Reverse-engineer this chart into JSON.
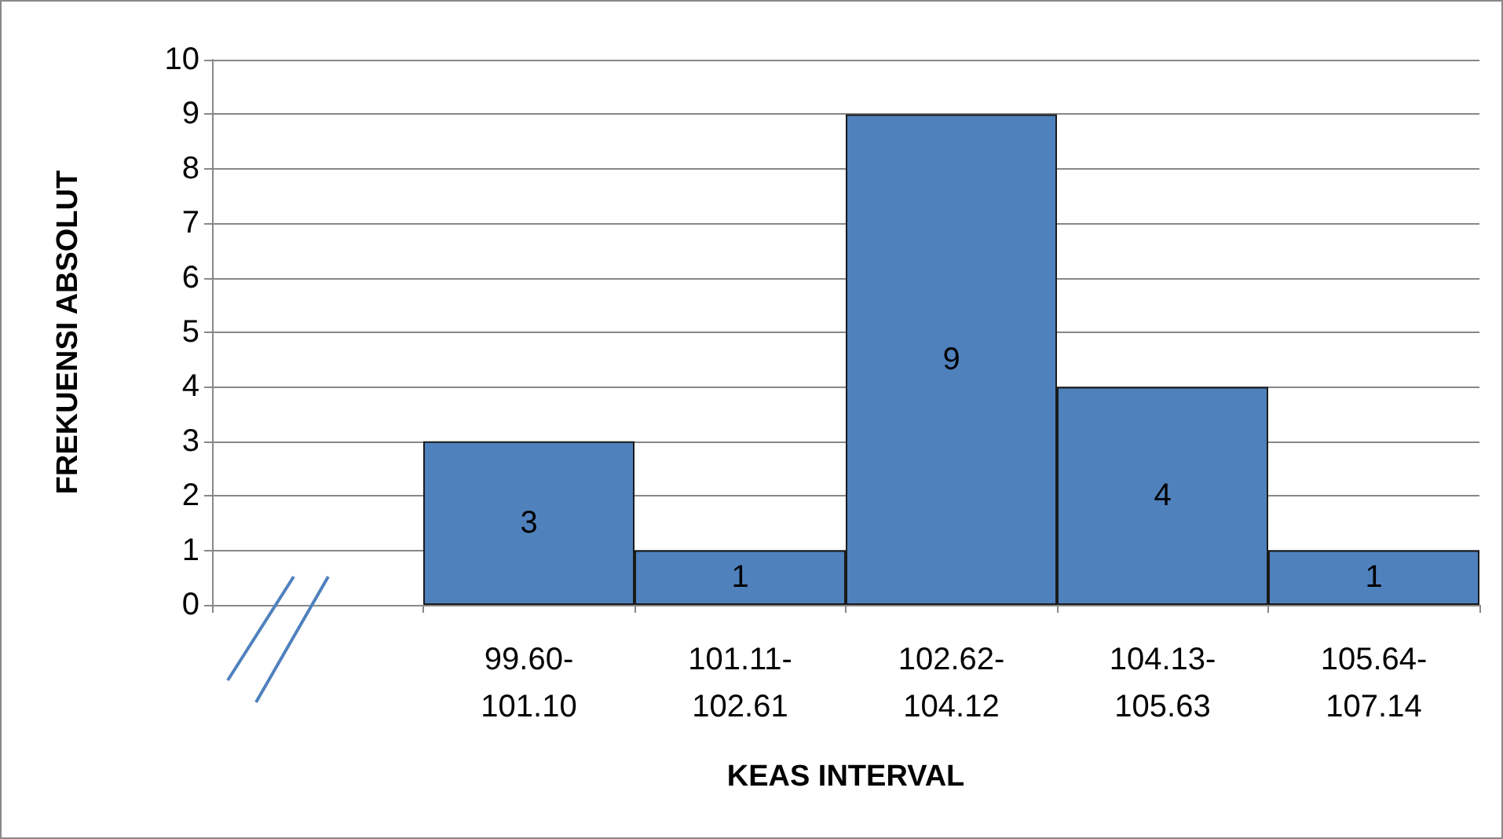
{
  "chart_data": {
    "type": "bar",
    "xlabel": "KEAS INTERVAL",
    "ylabel": "FREKUENSI ABSOLUT",
    "categories": [
      null,
      "99.60-101.10",
      "101.11-102.61",
      "102.62-104.12",
      "104.13-105.63",
      "105.64-107.14"
    ],
    "values": [
      null,
      3,
      1,
      9,
      4,
      1
    ],
    "color": "#4f81bd",
    "ylim": [
      0,
      10
    ],
    "yticks": [
      0,
      1,
      2,
      3,
      4,
      5,
      6,
      7,
      8,
      9,
      10
    ],
    "grid": "y",
    "data_labels": true
  }
}
